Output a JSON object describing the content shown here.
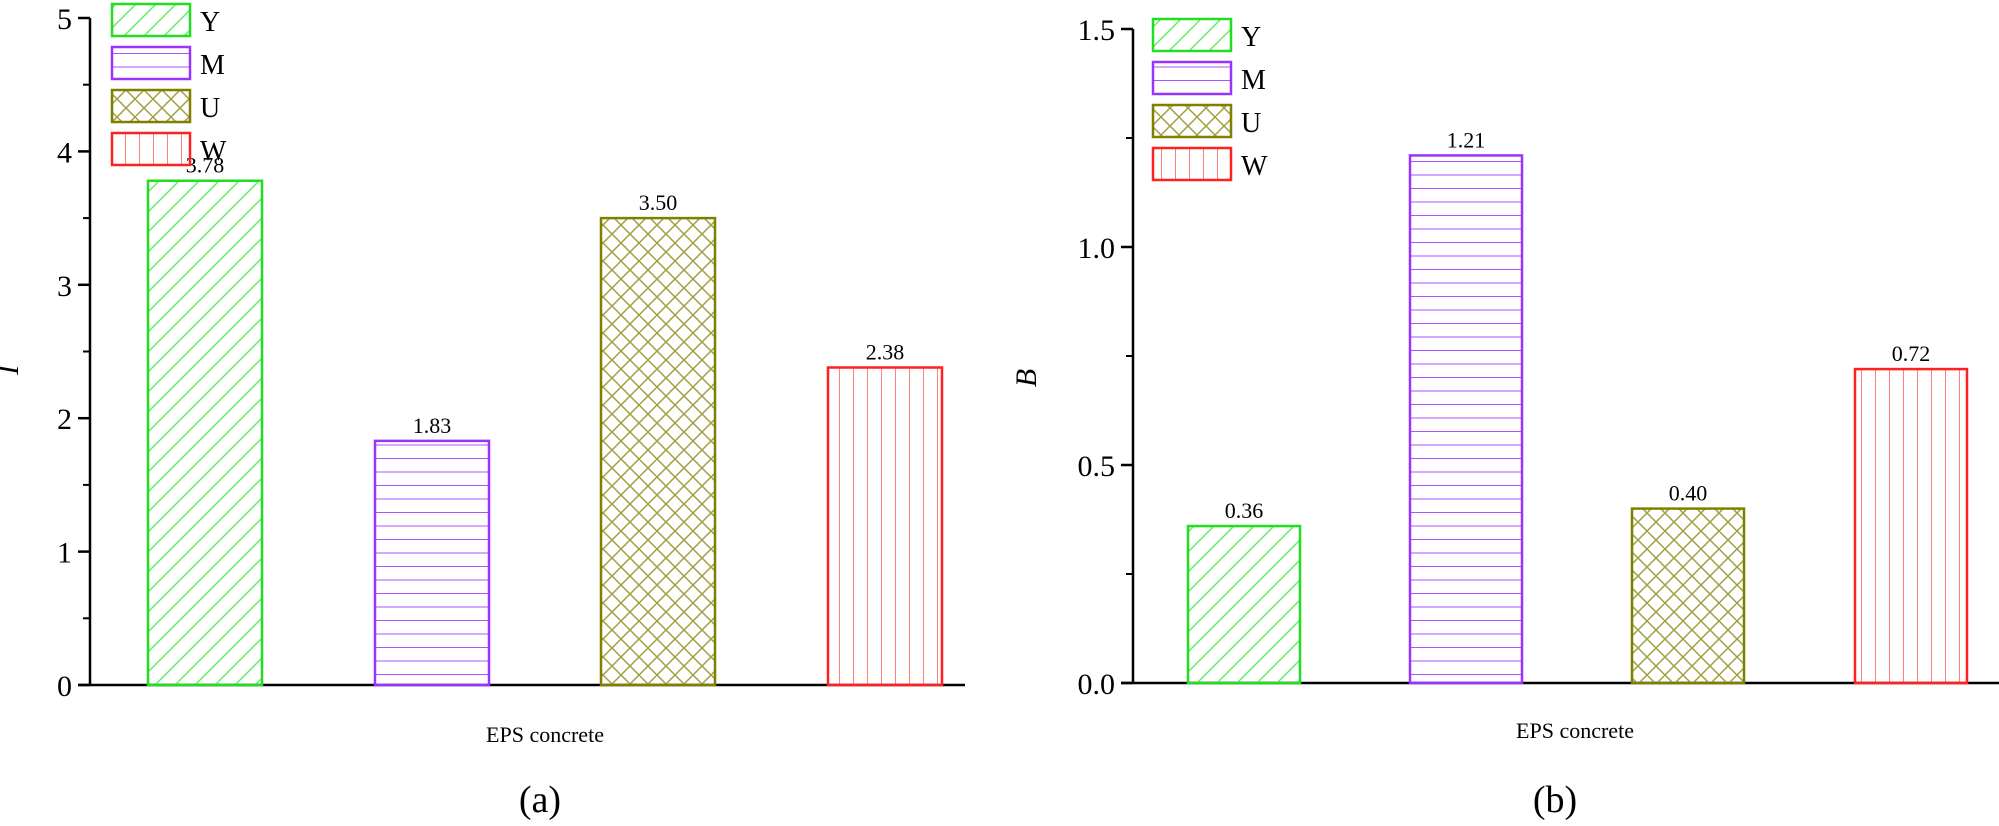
{
  "chart_data": [
    {
      "type": "bar",
      "panel": "(a)",
      "title": "",
      "xlabel": "EPS concrete",
      "ylabel": "I",
      "ylim": [
        0,
        5
      ],
      "yticks": [
        "0",
        "1",
        "2",
        "3",
        "4",
        "5"
      ],
      "grid": false,
      "legend_position": "upper-left",
      "categories": [
        "Y",
        "M",
        "U",
        "W"
      ],
      "values": [
        3.78,
        1.83,
        3.5,
        2.38
      ],
      "value_labels": [
        "3.78",
        "1.83",
        "3.50",
        "2.38"
      ]
    },
    {
      "type": "bar",
      "panel": "(b)",
      "title": "",
      "xlabel": "EPS concrete",
      "ylabel": "B",
      "ylim": [
        0,
        1.5
      ],
      "yticks": [
        "0.0",
        "0.5",
        "1.0",
        "1.5"
      ],
      "grid": false,
      "legend_position": "upper-left",
      "categories": [
        "Y",
        "M",
        "U",
        "W"
      ],
      "values": [
        0.36,
        1.21,
        0.4,
        0.72
      ],
      "value_labels": [
        "0.36",
        "1.21",
        "0.40",
        "0.72"
      ]
    }
  ],
  "series_styles": [
    {
      "name": "Y",
      "color": "#22dd22",
      "pattern": "diagonal-hatch"
    },
    {
      "name": "M",
      "color": "#9933ff",
      "pattern": "horizontal-lines"
    },
    {
      "name": "U",
      "color": "#808000",
      "pattern": "cross-hatch"
    },
    {
      "name": "W",
      "color": "#ff2020",
      "pattern": "vertical-lines"
    }
  ]
}
